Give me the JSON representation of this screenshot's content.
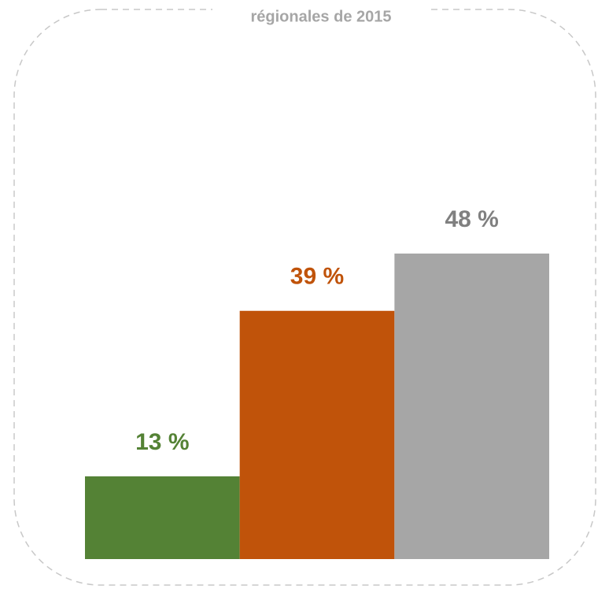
{
  "chart_data": {
    "type": "bar",
    "title": "régionales de 2015",
    "categories": [
      null,
      null,
      null
    ],
    "values": [
      13,
      39,
      48
    ],
    "value_labels": [
      "13 %",
      "39 %",
      "48 %"
    ],
    "colors": [
      "#548235",
      "#c0530a",
      "#a6a6a6"
    ],
    "label_colors": [
      "#548235",
      "#c0530a",
      "#808080"
    ]
  }
}
